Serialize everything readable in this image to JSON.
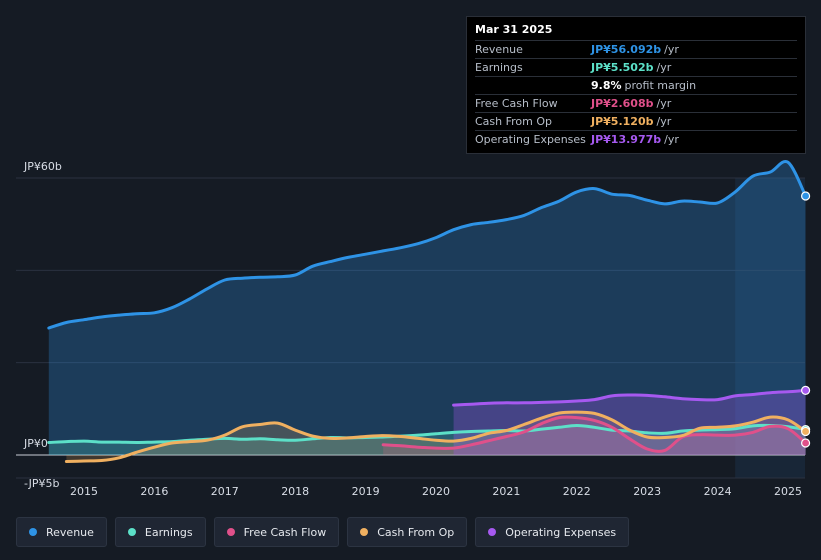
{
  "tooltip": {
    "date": "Mar 31 2025",
    "rows": [
      {
        "label": "Revenue",
        "value": "JP¥56.092b",
        "unit": "/yr",
        "color": "#2e93e6"
      },
      {
        "label": "Earnings",
        "value": "JP¥5.502b",
        "unit": "/yr",
        "color": "#5ce0c8"
      },
      {
        "label": "",
        "value": "9.8%",
        "unit": "profit margin",
        "color": "#ffffff"
      },
      {
        "label": "Free Cash Flow",
        "value": "JP¥2.608b",
        "unit": "/yr",
        "color": "#e0508a"
      },
      {
        "label": "Cash From Op",
        "value": "JP¥5.120b",
        "unit": "/yr",
        "color": "#f0b060"
      },
      {
        "label": "Operating Expenses",
        "value": "JP¥13.977b",
        "unit": "/yr",
        "color": "#a659f0"
      }
    ]
  },
  "legend": [
    {
      "label": "Revenue",
      "color": "#2e93e6"
    },
    {
      "label": "Earnings",
      "color": "#5ce0c8"
    },
    {
      "label": "Free Cash Flow",
      "color": "#e0508a"
    },
    {
      "label": "Cash From Op",
      "color": "#f0b060"
    },
    {
      "label": "Operating Expenses",
      "color": "#a659f0"
    }
  ],
  "chart_data": {
    "type": "area",
    "title": "",
    "xlabel": "",
    "ylabel": "",
    "ylim": [
      -5,
      60
    ],
    "y_tick_labels": [
      "JP¥60b",
      "JP¥0",
      "-JP¥5b"
    ],
    "x_tick_labels": [
      "2015",
      "2016",
      "2017",
      "2018",
      "2019",
      "2020",
      "2021",
      "2022",
      "2023",
      "2024",
      "2025"
    ],
    "x_tick_values": [
      2015,
      2016,
      2017,
      2018,
      2019,
      2020,
      2021,
      2022,
      2023,
      2024,
      2025
    ],
    "forecast_start": 2024.25,
    "series": [
      {
        "name": "Revenue",
        "color": "#2e93e6",
        "x": [
          2014.5,
          2014.75,
          2015.0,
          2015.25,
          2015.5,
          2015.75,
          2016.0,
          2016.25,
          2016.5,
          2016.75,
          2017.0,
          2017.25,
          2017.5,
          2017.75,
          2018.0,
          2018.25,
          2018.5,
          2018.75,
          2019.0,
          2019.25,
          2019.5,
          2019.75,
          2020.0,
          2020.25,
          2020.5,
          2020.75,
          2021.0,
          2021.25,
          2021.5,
          2021.75,
          2022.0,
          2022.25,
          2022.5,
          2022.75,
          2023.0,
          2023.25,
          2023.5,
          2023.75,
          2024.0,
          2024.25,
          2024.5,
          2024.75,
          2025.0,
          2025.25
        ],
        "values": [
          27.5,
          28.7,
          29.3,
          29.9,
          30.3,
          30.6,
          30.8,
          31.9,
          33.8,
          36.0,
          37.9,
          38.3,
          38.5,
          38.6,
          39.0,
          40.9,
          41.9,
          42.8,
          43.5,
          44.2,
          44.9,
          45.8,
          47.1,
          48.8,
          49.9,
          50.4,
          51.0,
          51.9,
          53.6,
          55.0,
          57.0,
          57.7,
          56.5,
          56.2,
          55.2,
          54.4,
          55.0,
          54.8,
          54.6,
          57.0,
          60.4,
          61.3,
          63.4,
          56.1
        ]
      },
      {
        "name": "Earnings",
        "color": "#5ce0c8",
        "x": [
          2014.5,
          2014.75,
          2015.0,
          2015.25,
          2015.5,
          2015.75,
          2016.0,
          2016.25,
          2016.5,
          2016.75,
          2017.0,
          2017.25,
          2017.5,
          2017.75,
          2018.0,
          2018.25,
          2018.5,
          2018.75,
          2019.0,
          2019.25,
          2019.5,
          2019.75,
          2020.0,
          2020.25,
          2020.5,
          2020.75,
          2021.0,
          2021.25,
          2021.5,
          2021.75,
          2022.0,
          2022.25,
          2022.5,
          2022.75,
          2023.0,
          2023.25,
          2023.5,
          2023.75,
          2024.0,
          2024.25,
          2024.5,
          2024.75,
          2025.0,
          2025.25
        ],
        "values": [
          2.7,
          2.9,
          3.0,
          2.8,
          2.8,
          2.7,
          2.8,
          2.9,
          3.2,
          3.4,
          3.6,
          3.4,
          3.5,
          3.3,
          3.2,
          3.5,
          3.8,
          3.7,
          3.8,
          3.9,
          4.1,
          4.3,
          4.6,
          4.9,
          5.1,
          5.2,
          5.3,
          5.2,
          5.6,
          6.0,
          6.4,
          6.0,
          5.4,
          5.2,
          4.8,
          4.7,
          5.2,
          5.4,
          5.5,
          5.7,
          6.3,
          6.4,
          6.1,
          5.5
        ]
      },
      {
        "name": "Free Cash Flow",
        "color": "#e0508a",
        "x": [
          2019.25,
          2019.5,
          2019.75,
          2020.0,
          2020.25,
          2020.5,
          2020.75,
          2021.0,
          2021.25,
          2021.5,
          2021.75,
          2022.0,
          2022.25,
          2022.5,
          2022.75,
          2023.0,
          2023.25,
          2023.5,
          2023.75,
          2024.0,
          2024.25,
          2024.5,
          2024.75,
          2025.0,
          2025.25
        ],
        "values": [
          2.2,
          2.0,
          1.7,
          1.5,
          1.5,
          2.2,
          3.1,
          4.0,
          5.0,
          6.8,
          8.1,
          8.1,
          7.5,
          6.0,
          3.5,
          1.3,
          1.0,
          3.9,
          4.4,
          4.3,
          4.3,
          4.9,
          6.2,
          5.7,
          2.6
        ]
      },
      {
        "name": "Cash From Op",
        "color": "#f0b060",
        "x": [
          2014.75,
          2015.0,
          2015.25,
          2015.5,
          2015.75,
          2016.0,
          2016.25,
          2016.5,
          2016.75,
          2017.0,
          2017.25,
          2017.5,
          2017.75,
          2018.0,
          2018.25,
          2018.5,
          2018.75,
          2019.0,
          2019.25,
          2019.5,
          2019.75,
          2020.0,
          2020.25,
          2020.5,
          2020.75,
          2021.0,
          2021.25,
          2021.5,
          2021.75,
          2022.0,
          2022.25,
          2022.5,
          2022.75,
          2023.0,
          2023.25,
          2023.5,
          2023.75,
          2024.0,
          2024.25,
          2024.5,
          2024.75,
          2025.0,
          2025.25
        ],
        "values": [
          -1.4,
          -1.3,
          -1.2,
          -0.6,
          0.6,
          1.7,
          2.6,
          2.9,
          3.2,
          4.3,
          6.1,
          6.6,
          6.9,
          5.4,
          4.1,
          3.6,
          3.7,
          4.0,
          4.2,
          4.0,
          3.6,
          3.2,
          3.0,
          3.6,
          4.7,
          5.3,
          6.6,
          8.0,
          9.1,
          9.3,
          9.0,
          7.6,
          5.4,
          3.9,
          3.8,
          4.2,
          5.8,
          6.0,
          6.3,
          7.1,
          8.2,
          7.6,
          5.1
        ]
      },
      {
        "name": "Operating Expenses",
        "color": "#a659f0",
        "x": [
          2020.25,
          2020.5,
          2020.75,
          2021.0,
          2021.25,
          2021.5,
          2021.75,
          2022.0,
          2022.25,
          2022.5,
          2022.75,
          2023.0,
          2023.25,
          2023.5,
          2023.75,
          2024.0,
          2024.25,
          2024.5,
          2024.75,
          2025.0,
          2025.25
        ],
        "values": [
          10.8,
          11.0,
          11.2,
          11.3,
          11.3,
          11.4,
          11.5,
          11.7,
          12.0,
          12.8,
          13.0,
          12.9,
          12.6,
          12.2,
          12.0,
          12.0,
          12.8,
          13.1,
          13.5,
          13.7,
          14.0
        ]
      }
    ]
  }
}
